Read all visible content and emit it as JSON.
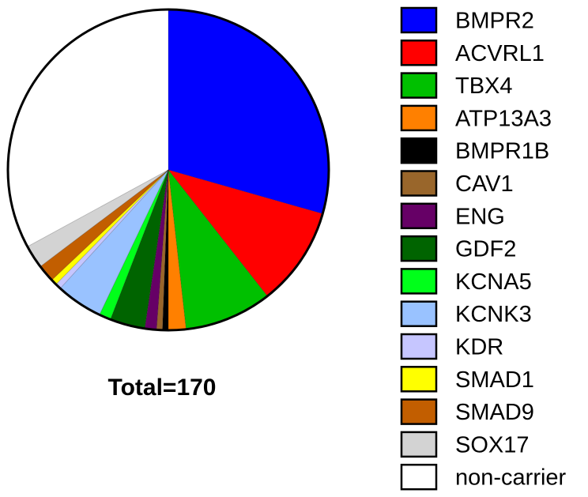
{
  "chart_data": {
    "type": "pie",
    "annotation": "Total=170",
    "total": 170,
    "start_angle_deg": 0,
    "direction": "clockwise",
    "slices": [
      {
        "label": "BMPR2",
        "value": 50,
        "color": "#0000ff"
      },
      {
        "label": "ACVRL1",
        "value": 17,
        "color": "#ff0000"
      },
      {
        "label": "TBX4",
        "value": 15,
        "color": "#00c000"
      },
      {
        "label": "ATP13A3",
        "value": 3,
        "color": "#ff8000"
      },
      {
        "label": "BMPR1B",
        "value": 1,
        "color": "#000000"
      },
      {
        "label": "CAV1",
        "value": 1,
        "color": "#99662b"
      },
      {
        "label": "ENG",
        "value": 2,
        "color": "#660066"
      },
      {
        "label": "GDF2",
        "value": 6,
        "color": "#006400"
      },
      {
        "label": "KCNA5",
        "value": 2,
        "color": "#00ff1a"
      },
      {
        "label": "KCNK3",
        "value": 8,
        "color": "#99c2ff"
      },
      {
        "label": "KDR",
        "value": 1,
        "color": "#c6c6ff"
      },
      {
        "label": "SMAD1",
        "value": 1,
        "color": "#ffff00"
      },
      {
        "label": "SMAD9",
        "value": 3,
        "color": "#c25e00"
      },
      {
        "label": "SOX17",
        "value": 4,
        "color": "#d3d3d3"
      },
      {
        "label": "non-carrier",
        "value": 56,
        "color": "#ffffff"
      }
    ],
    "legend_position": "right"
  }
}
